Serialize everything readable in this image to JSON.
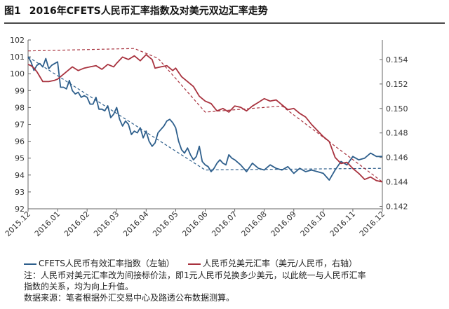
{
  "figure": {
    "label": "图1",
    "title": "2016年CFETS人民币汇率指数及对美元双边汇率走势"
  },
  "chart_data": {
    "type": "line",
    "x_ticks": [
      "2015.12",
      "2016.01",
      "2016.02",
      "2016.03",
      "2016.04",
      "2016.05",
      "2016.06",
      "2016.07",
      "2016.08",
      "2016.09",
      "2016.10",
      "2016.11",
      "2016.12"
    ],
    "y_left": {
      "ticks": [
        "92",
        "93",
        "94",
        "95",
        "96",
        "97",
        "98",
        "99",
        "100",
        "101",
        "102"
      ],
      "lim": [
        92,
        102
      ]
    },
    "y_right": {
      "ticks": [
        "0.142",
        "0.144",
        "0.146",
        "0.148",
        "0.150",
        "0.152",
        "0.154"
      ],
      "lim": [
        0.1418,
        0.1556
      ]
    },
    "grid": false,
    "legend_position": "bottom",
    "series": [
      {
        "name": "CFETS人民币有效汇率指数（左轴）",
        "axis": "left",
        "color": "#2e5f8c",
        "x": [
          0,
          0.1,
          0.2,
          0.3,
          0.4,
          0.5,
          0.6,
          0.7,
          0.8,
          0.9,
          1.0,
          1.1,
          1.2,
          1.3,
          1.4,
          1.5,
          1.6,
          1.7,
          1.8,
          1.9,
          2.0,
          2.1,
          2.2,
          2.3,
          2.4,
          2.5,
          2.6,
          2.7,
          2.8,
          2.9,
          3.0,
          3.1,
          3.2,
          3.3,
          3.4,
          3.5,
          3.6,
          3.7,
          3.8,
          3.9,
          4.0,
          4.1,
          4.2,
          4.3,
          4.4,
          4.5,
          4.6,
          4.7,
          4.8,
          4.9,
          5.0,
          5.1,
          5.2,
          5.3,
          5.4,
          5.5,
          5.6,
          5.7,
          5.8,
          5.9,
          6.0,
          6.1,
          6.2,
          6.3,
          6.4,
          6.5,
          6.6,
          6.7,
          6.8,
          6.9,
          7.0,
          7.2,
          7.4,
          7.6,
          7.8,
          8.0,
          8.2,
          8.4,
          8.6,
          8.8,
          9.0,
          9.2,
          9.4,
          9.6,
          9.8,
          10.0,
          10.2,
          10.4,
          10.6,
          10.8,
          11.0,
          11.2,
          11.4,
          11.6,
          11.8,
          12.0
        ],
        "values": [
          101.0,
          100.7,
          100.2,
          100.5,
          100.6,
          100.4,
          100.9,
          100.3,
          100.5,
          100.6,
          100.7,
          99.2,
          99.2,
          99.1,
          99.6,
          99.0,
          98.8,
          98.9,
          98.6,
          98.7,
          98.6,
          98.2,
          98.2,
          98.6,
          97.9,
          97.9,
          97.8,
          98.1,
          97.4,
          97.6,
          98.0,
          97.3,
          96.9,
          97.2,
          97.0,
          96.4,
          96.6,
          96.5,
          96.8,
          96.2,
          96.6,
          96.0,
          95.7,
          95.9,
          96.5,
          96.7,
          96.9,
          97.2,
          97.3,
          97.1,
          96.8,
          96.0,
          95.5,
          95.3,
          95.6,
          95.2,
          94.9,
          95.1,
          95.7,
          94.8,
          94.6,
          94.5,
          94.2,
          94.4,
          94.7,
          94.9,
          94.7,
          94.6,
          95.2,
          95.0,
          94.9,
          94.6,
          94.2,
          94.7,
          94.4,
          94.3,
          94.6,
          94.4,
          94.3,
          94.5,
          94.1,
          94.4,
          94.2,
          94.3,
          94.2,
          94.1,
          93.7,
          94.3,
          94.8,
          94.6,
          95.1,
          94.9,
          95.0,
          95.3,
          95.1,
          95.1
        ]
      },
      {
        "name": "人民币兑美元汇率（美元/人民币，右轴）",
        "axis": "right",
        "color": "#a8323e",
        "x": [
          0,
          0.1,
          0.2,
          0.3,
          0.4,
          0.5,
          0.7,
          0.9,
          1.0,
          1.1,
          1.3,
          1.5,
          1.7,
          1.9,
          2.1,
          2.3,
          2.5,
          2.7,
          2.9,
          3.0,
          3.2,
          3.4,
          3.6,
          3.8,
          4.0,
          4.2,
          4.3,
          4.5,
          4.7,
          4.9,
          5.0,
          5.2,
          5.4,
          5.6,
          5.8,
          6.0,
          6.2,
          6.4,
          6.6,
          6.8,
          7.0,
          7.2,
          7.4,
          7.6,
          7.8,
          8.0,
          8.2,
          8.4,
          8.6,
          8.8,
          9.0,
          9.2,
          9.4,
          9.6,
          9.8,
          10.0,
          10.2,
          10.4,
          10.6,
          10.8,
          11.0,
          11.2,
          11.4,
          11.6,
          11.8,
          12.0
        ],
        "values": [
          0.1536,
          0.1535,
          0.1533,
          0.153,
          0.1526,
          0.1522,
          0.1522,
          0.1523,
          0.1524,
          0.1526,
          0.153,
          0.1534,
          0.1531,
          0.1533,
          0.1534,
          0.1535,
          0.1532,
          0.1536,
          0.1534,
          0.1537,
          0.1542,
          0.154,
          0.1543,
          0.1539,
          0.1544,
          0.154,
          0.1533,
          0.1534,
          0.1535,
          0.1531,
          0.1533,
          0.1526,
          0.1522,
          0.1518,
          0.151,
          0.1506,
          0.1504,
          0.1498,
          0.15,
          0.1497,
          0.1502,
          0.1501,
          0.1498,
          0.1502,
          0.1505,
          0.1508,
          0.1506,
          0.1507,
          0.1503,
          0.1499,
          0.15,
          0.1496,
          0.1493,
          0.1487,
          0.1482,
          0.1477,
          0.1473,
          0.146,
          0.1455,
          0.1456,
          0.1451,
          0.1447,
          0.1442,
          0.1444,
          0.1441,
          0.144
        ]
      }
    ],
    "trend_lines": [
      {
        "axis": "left",
        "color": "#2e5f8c",
        "x": [
          0,
          6.0,
          12.0
        ],
        "values": [
          101.0,
          94.3,
          94.4
        ]
      },
      {
        "axis": "right",
        "color": "#a8323e",
        "x": [
          0,
          3.6,
          4.4,
          6.0,
          8.6,
          12.0
        ],
        "values": [
          0.1547,
          0.1549,
          0.1541,
          0.1497,
          0.1502,
          0.144
        ]
      }
    ]
  },
  "legend": {
    "item1": "CFETS人民币有效汇率指数（左轴）",
    "item2": "人民币兑美元汇率（美元/人民币，右轴）"
  },
  "notes": {
    "line1": "注：人民币对美元汇率改为间接标价法，即1元人民币兑换多少美元，以此统一与人民币汇率",
    "line2": "指数的关系，均为向上升值。",
    "line3": "数据来源：笔者根据外汇交易中心及路透公布数据测算。"
  }
}
